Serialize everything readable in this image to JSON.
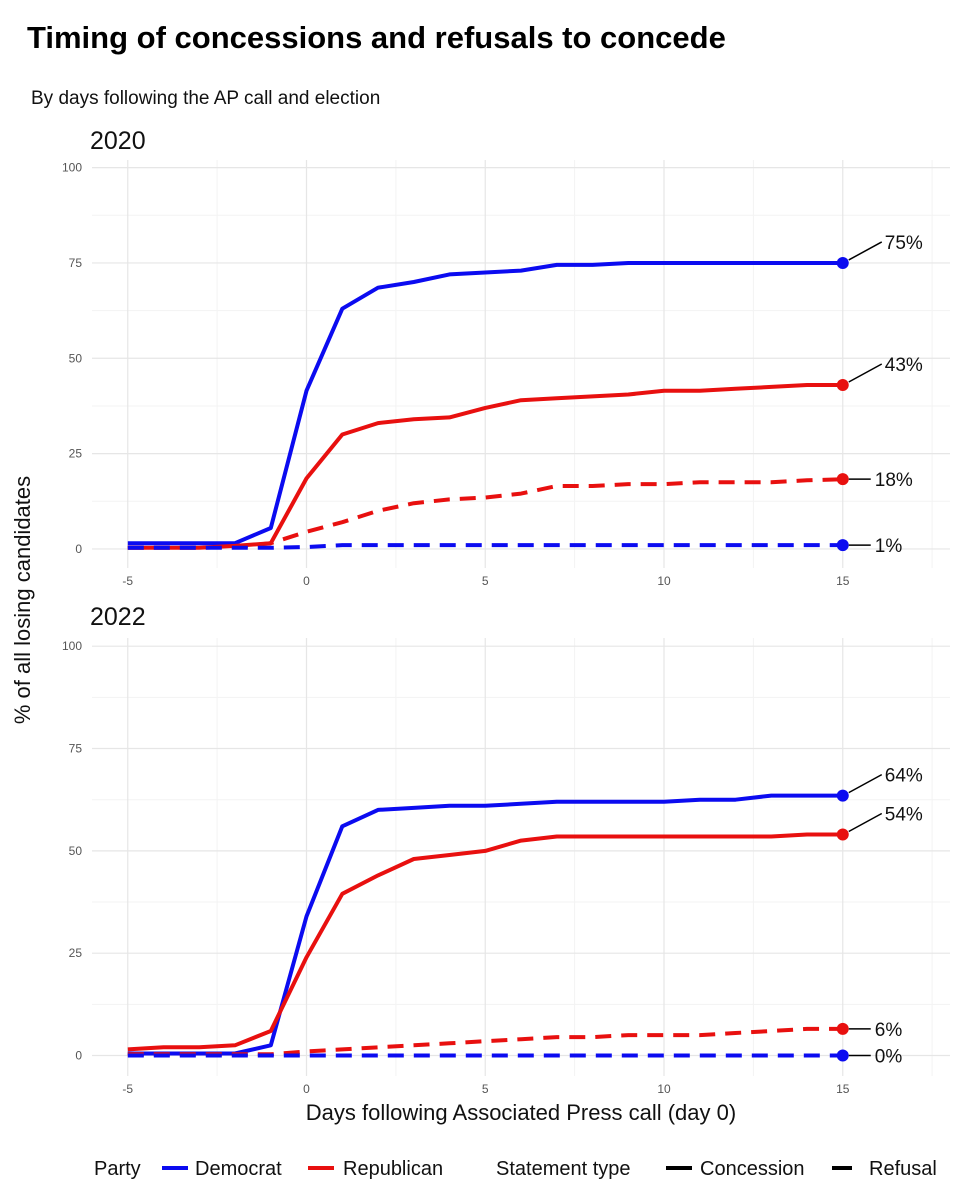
{
  "title": "Timing of concessions and refusals to concede",
  "subtitle": "By days following the AP call and election",
  "x_axis_label": "Days following Associated Press call (day 0)",
  "y_axis_label": "% of all losing candidates",
  "colors": {
    "Democrat": "#0b0bf0",
    "Republican": "#e8100f"
  },
  "legend": {
    "party_title": "Party",
    "party_items": [
      "Democrat",
      "Republican"
    ],
    "type_title": "Statement type",
    "type_items": [
      "Concession",
      "Refusal"
    ]
  },
  "chart_data": [
    {
      "type": "line",
      "panel_title": "2020",
      "xlim": [
        -6,
        18
      ],
      "ylim": [
        -5,
        102
      ],
      "x_ticks": [
        -5,
        0,
        5,
        10,
        15
      ],
      "y_ticks": [
        0,
        25,
        50,
        75,
        100
      ],
      "grid": true,
      "series": [
        {
          "party": "Democrat",
          "statement": "Concession",
          "x": [
            -5,
            -4,
            -3,
            -2,
            -1,
            0,
            1,
            2,
            3,
            4,
            5,
            6,
            7,
            8,
            9,
            10,
            11,
            12,
            13,
            14,
            15
          ],
          "y": [
            1.5,
            1.5,
            1.5,
            1.5,
            5.5,
            41.5,
            63,
            68.5,
            70,
            72,
            72.5,
            73,
            74.5,
            74.5,
            75,
            75,
            75,
            75,
            75,
            75,
            75
          ],
          "end_label": "75%"
        },
        {
          "party": "Republican",
          "statement": "Concession",
          "x": [
            -5,
            -4,
            -3,
            -2,
            -1,
            0,
            1,
            2,
            3,
            4,
            5,
            6,
            7,
            8,
            9,
            10,
            11,
            12,
            13,
            14,
            15
          ],
          "y": [
            0.3,
            0.3,
            0.3,
            0.8,
            1.5,
            18.5,
            30,
            33,
            34,
            34.5,
            37,
            39,
            39.5,
            40,
            40.5,
            41.5,
            41.5,
            42,
            42.5,
            43,
            43
          ],
          "end_label": "43%"
        },
        {
          "party": "Republican",
          "statement": "Refusal",
          "x": [
            -5,
            -4,
            -3,
            -2,
            -1,
            0,
            1,
            2,
            3,
            4,
            5,
            6,
            7,
            8,
            9,
            10,
            11,
            12,
            13,
            14,
            15
          ],
          "y": [
            0.3,
            0.3,
            0.3,
            0.5,
            1.5,
            4.5,
            7,
            10,
            12,
            13,
            13.5,
            14.5,
            16.5,
            16.5,
            17,
            17,
            17.5,
            17.5,
            17.5,
            18,
            18.3
          ],
          "end_label": "18%"
        },
        {
          "party": "Democrat",
          "statement": "Refusal",
          "x": [
            -5,
            -4,
            -3,
            -2,
            -1,
            0,
            1,
            2,
            3,
            4,
            5,
            6,
            7,
            8,
            9,
            10,
            11,
            12,
            13,
            14,
            15
          ],
          "y": [
            0.3,
            0.3,
            0.3,
            0.3,
            0.3,
            0.5,
            1,
            1,
            1,
            1,
            1,
            1,
            1,
            1,
            1,
            1,
            1,
            1,
            1,
            1,
            1
          ],
          "end_label": "1%"
        }
      ]
    },
    {
      "type": "line",
      "panel_title": "2022",
      "xlim": [
        -6,
        18
      ],
      "ylim": [
        -5,
        102
      ],
      "x_ticks": [
        -5,
        0,
        5,
        10,
        15
      ],
      "y_ticks": [
        0,
        25,
        50,
        75,
        100
      ],
      "grid": true,
      "series": [
        {
          "party": "Democrat",
          "statement": "Concession",
          "x": [
            -5,
            -4,
            -3,
            -2,
            -1,
            0,
            1,
            2,
            3,
            4,
            5,
            6,
            7,
            8,
            9,
            10,
            11,
            12,
            13,
            14,
            15
          ],
          "y": [
            0.5,
            0.5,
            0.5,
            0.5,
            2.5,
            34,
            56,
            60,
            60.5,
            61,
            61,
            61.5,
            62,
            62,
            62,
            62,
            62.5,
            62.5,
            63.5,
            63.5,
            63.5
          ],
          "end_label": "64%"
        },
        {
          "party": "Republican",
          "statement": "Concession",
          "x": [
            -5,
            -4,
            -3,
            -2,
            -1,
            0,
            1,
            2,
            3,
            4,
            5,
            6,
            7,
            8,
            9,
            10,
            11,
            12,
            13,
            14,
            15
          ],
          "y": [
            1.5,
            2,
            2,
            2.5,
            6,
            24,
            39.5,
            44,
            48,
            49,
            50,
            52.5,
            53.5,
            53.5,
            53.5,
            53.5,
            53.5,
            53.5,
            53.5,
            54,
            54
          ],
          "end_label": "54%"
        },
        {
          "party": "Republican",
          "statement": "Refusal",
          "x": [
            -5,
            -4,
            -3,
            -2,
            -1,
            0,
            1,
            2,
            3,
            4,
            5,
            6,
            7,
            8,
            9,
            10,
            11,
            12,
            13,
            14,
            15
          ],
          "y": [
            0.3,
            0.3,
            0.3,
            0.3,
            0.3,
            1,
            1.5,
            2,
            2.5,
            3,
            3.5,
            4,
            4.5,
            4.5,
            5,
            5,
            5,
            5.5,
            6,
            6.5,
            6.5
          ],
          "end_label": "6%"
        },
        {
          "party": "Democrat",
          "statement": "Refusal",
          "x": [
            -5,
            -4,
            -3,
            -2,
            -1,
            0,
            1,
            2,
            3,
            4,
            5,
            6,
            7,
            8,
            9,
            10,
            11,
            12,
            13,
            14,
            15
          ],
          "y": [
            0,
            0,
            0,
            0,
            0,
            0,
            0,
            0,
            0,
            0,
            0,
            0,
            0,
            0,
            0,
            0,
            0,
            0,
            0,
            0,
            0
          ],
          "end_label": "0%"
        }
      ]
    }
  ]
}
